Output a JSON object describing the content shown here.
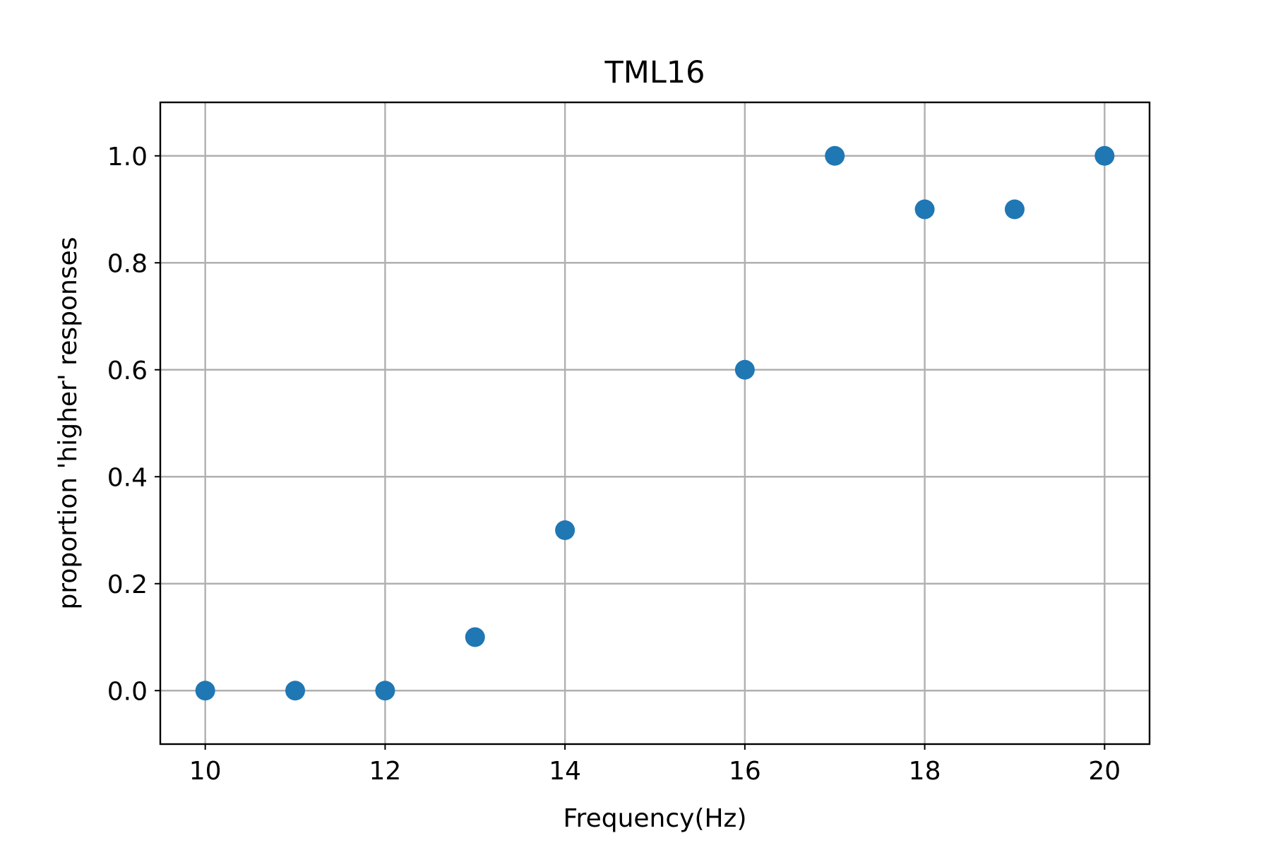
{
  "chart_data": {
    "type": "scatter",
    "title": "TML16",
    "xlabel": "Frequency(Hz)",
    "ylabel": "proportion 'higher' responses",
    "xlim": [
      9.5,
      20.5
    ],
    "ylim": [
      -0.1,
      1.1
    ],
    "xticks": [
      10,
      12,
      14,
      16,
      18,
      20
    ],
    "xtick_labels": [
      "10",
      "12",
      "14",
      "16",
      "18",
      "20"
    ],
    "yticks": [
      0.0,
      0.2,
      0.4,
      0.6,
      0.8,
      1.0
    ],
    "ytick_labels": [
      "0.0",
      "0.2",
      "0.4",
      "0.6",
      "0.8",
      "1.0"
    ],
    "grid": true,
    "legend": "none",
    "series": [
      {
        "color": "#1f77b4",
        "x": [
          10,
          11,
          12,
          13,
          14,
          16,
          17,
          18,
          19,
          20
        ],
        "y": [
          0.0,
          0.0,
          0.0,
          0.1,
          0.3,
          0.6,
          1.0,
          0.9,
          0.9,
          1.0
        ]
      }
    ]
  }
}
